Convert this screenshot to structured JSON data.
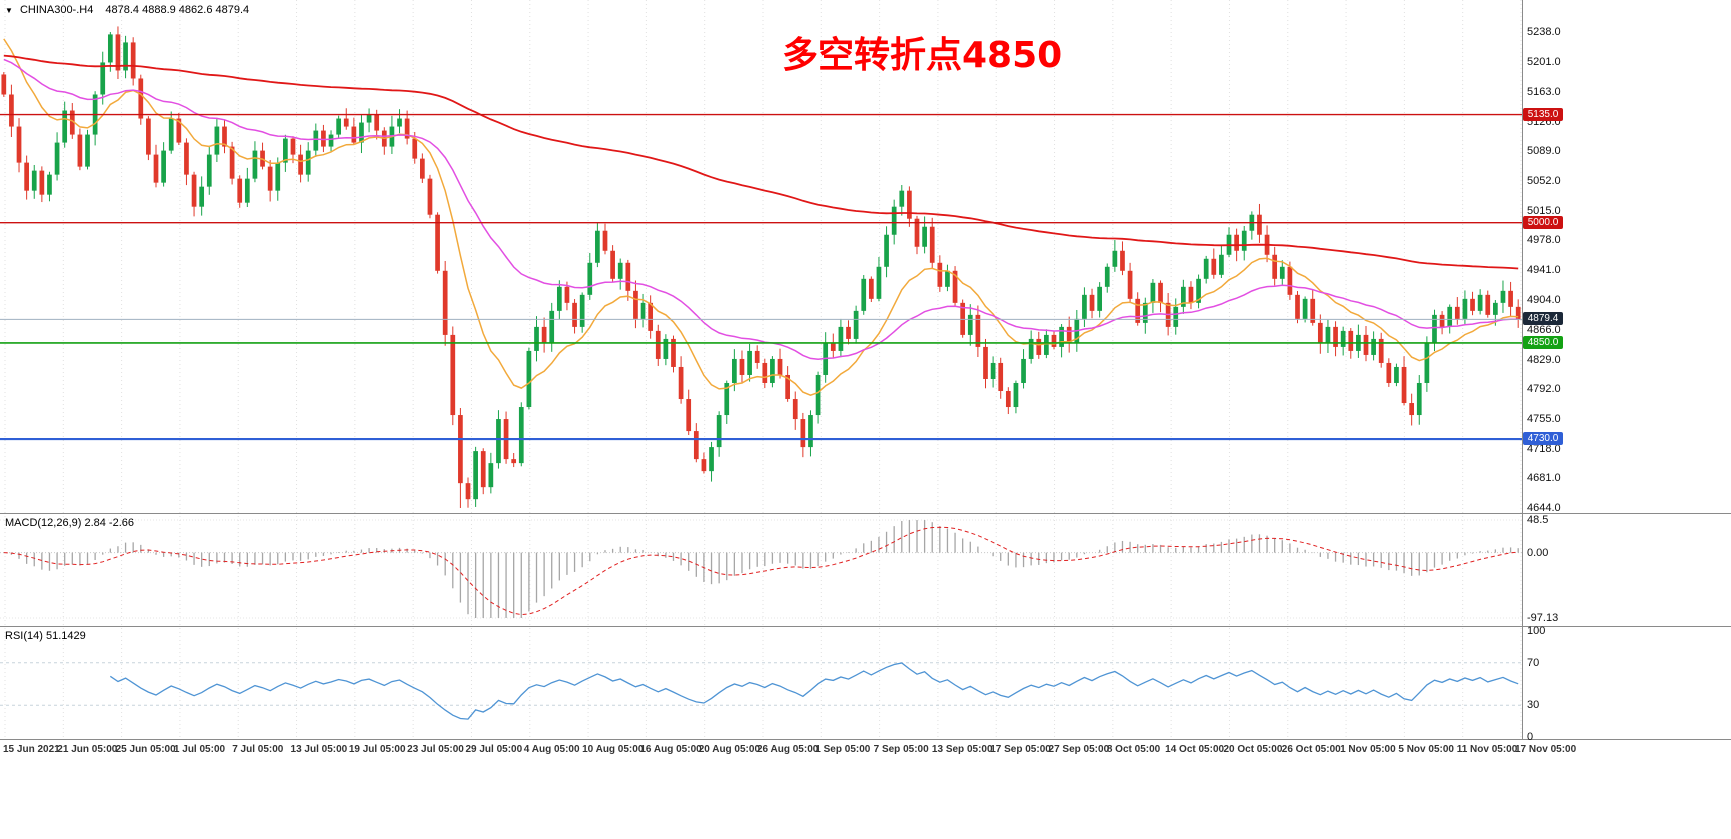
{
  "header": {
    "marker": "▼",
    "symbol": "CHINA300-.H4",
    "ohlc": "4878.4 4888.9 4862.6 4879.4"
  },
  "annotation": {
    "text": "多空转折点4850",
    "color": "#ff0000"
  },
  "price_scale": {
    "ticks": [
      "5238.0",
      "5201.0",
      "5163.0",
      "5126.0",
      "5089.0",
      "5052.0",
      "5015.0",
      "4978.0",
      "4941.0",
      "4904.0",
      "4866.0",
      "4829.0",
      "4792.0",
      "4755.0",
      "4718.0",
      "4681.0",
      "4644.0"
    ],
    "tick_values": [
      5238,
      5201,
      5163,
      5126,
      5089,
      5052,
      5015,
      4978,
      4941,
      4904,
      4866,
      4829,
      4792,
      4755,
      4718,
      4681,
      4644
    ],
    "level_lines": [
      {
        "name": "resistance-5135",
        "price": 5135.0,
        "label": "5135.0",
        "color": "#cc1111",
        "badge": "#cc1111",
        "width": 1.4
      },
      {
        "name": "resistance-5000",
        "price": 5000.0,
        "label": "5000.0",
        "color": "#cc1111",
        "badge": "#cc1111",
        "width": 1.4
      },
      {
        "name": "pivot-4850",
        "price": 4850.0,
        "label": "4850.0",
        "color": "#13a113",
        "badge": "#13a113",
        "width": 1.6
      },
      {
        "name": "support-4730",
        "price": 4730.0,
        "label": "4730.0",
        "color": "#2f5fd6",
        "badge": "#2f5fd6",
        "width": 2.2
      }
    ],
    "current_price": {
      "name": "current-price",
      "price": 4879.4,
      "label": "4879.4",
      "line_color": "#9fb0c0",
      "badge": "#1b2838"
    }
  },
  "macd": {
    "label": "MACD(12,26,9) 2.84 -2.66",
    "axis": [
      {
        "text": "48.5",
        "value": 48.5
      },
      {
        "text": "0.00",
        "value": 0
      },
      {
        "text": "-97.13",
        "value": -97.13
      }
    ],
    "histogram_color": "#a6a6a6",
    "signal_color": "#e02020"
  },
  "rsi": {
    "label": "RSI(14) 51.1429",
    "axis": [
      {
        "text": "100",
        "value": 100
      },
      {
        "text": "70",
        "value": 70
      },
      {
        "text": "30",
        "value": 30
      },
      {
        "text": "0",
        "value": 0
      }
    ],
    "line_color": "#4f94d4"
  },
  "time_axis": {
    "labels": [
      "15 Jun 2021",
      "21 Jun 05:00",
      "25 Jun 05:00",
      "1 Jul 05:00",
      "7 Jul 05:00",
      "13 Jul 05:00",
      "19 Jul 05:00",
      "23 Jul 05:00",
      "29 Jul 05:00",
      "4 Aug 05:00",
      "10 Aug 05:00",
      "16 Aug 05:00",
      "20 Aug 05:00",
      "26 Aug 05:00",
      "1 Sep 05:00",
      "7 Sep 05:00",
      "13 Sep 05:00",
      "17 Sep 05:00",
      "27 Sep 05:00",
      "8 Oct 05:00",
      "14 Oct 05:00",
      "20 Oct 05:00",
      "26 Oct 05:00",
      "1 Nov 05:00",
      "5 Nov 05:00",
      "11 Nov 05:00",
      "17 Nov 05:00"
    ]
  },
  "chart_data": {
    "type": "candlestick",
    "symbol": "CHINA300-",
    "timeframe": "H4",
    "title": "CHINA300-.H4",
    "y_range": [
      4644,
      5238
    ],
    "x_start": "15 Jun 2021",
    "x_end": "17 Nov 2021 05:00",
    "current_bar": {
      "open": 4878.4,
      "high": 4888.9,
      "low": 4862.6,
      "close": 4879.4
    },
    "horizontal_levels": [
      5135.0,
      5000.0,
      4850.0,
      4730.0
    ],
    "key_points": [
      {
        "date": "25 Jun 2021",
        "price": 5238,
        "type": "high"
      },
      {
        "date": "23 Jul 2021",
        "price": 4644,
        "type": "low"
      },
      {
        "date": "10 Aug 2021",
        "price": 5000,
        "type": "swing-high"
      },
      {
        "date": "20 Aug 2021",
        "price": 4690,
        "type": "swing-low"
      },
      {
        "date": "7 Sep 2021",
        "price": 5052,
        "type": "swing-high"
      },
      {
        "date": "20 Oct 2021",
        "price": 5015,
        "type": "swing-high"
      },
      {
        "date": "5 Nov 2021",
        "price": 4755,
        "type": "swing-low"
      },
      {
        "date": "17 Nov 2021",
        "price": 4879.4,
        "type": "last"
      }
    ],
    "first_open": 5185,
    "closes": [
      5160,
      5120,
      5075,
      5040,
      5065,
      5035,
      5060,
      5100,
      5140,
      5110,
      5070,
      5110,
      5160,
      5200,
      5235,
      5190,
      5225,
      5180,
      5130,
      5085,
      5050,
      5090,
      5130,
      5100,
      5060,
      5020,
      5045,
      5085,
      5120,
      5095,
      5055,
      5025,
      5055,
      5090,
      5070,
      5040,
      5075,
      5105,
      5085,
      5060,
      5090,
      5115,
      5095,
      5110,
      5130,
      5120,
      5100,
      5125,
      5135,
      5115,
      5095,
      5120,
      5130,
      5105,
      5080,
      5055,
      5010,
      4940,
      4860,
      4760,
      4675,
      4655,
      4715,
      4670,
      4700,
      4755,
      4705,
      4700,
      4770,
      4840,
      4870,
      4850,
      4890,
      4920,
      4900,
      4870,
      4910,
      4950,
      4990,
      4965,
      4930,
      4950,
      4915,
      4880,
      4900,
      4865,
      4830,
      4855,
      4820,
      4780,
      4740,
      4705,
      4690,
      4720,
      4760,
      4800,
      4830,
      4810,
      4840,
      4825,
      4800,
      4830,
      4810,
      4780,
      4755,
      4720,
      4760,
      4810,
      4850,
      4840,
      4870,
      4855,
      4890,
      4930,
      4905,
      4945,
      4985,
      5020,
      5040,
      5005,
      4970,
      4995,
      4950,
      4920,
      4940,
      4900,
      4860,
      4885,
      4845,
      4805,
      4825,
      4790,
      4770,
      4800,
      4830,
      4855,
      4835,
      4860,
      4845,
      4870,
      4850,
      4880,
      4910,
      4890,
      4920,
      4945,
      4965,
      4940,
      4905,
      4875,
      4900,
      4925,
      4900,
      4870,
      4895,
      4920,
      4900,
      4930,
      4955,
      4935,
      4960,
      4985,
      4965,
      4990,
      5010,
      4985,
      4960,
      4930,
      4945,
      4910,
      4880,
      4905,
      4875,
      4850,
      4870,
      4845,
      4865,
      4840,
      4860,
      4835,
      4855,
      4825,
      4800,
      4820,
      4775,
      4760,
      4800,
      4850,
      4885,
      4870,
      4895,
      4880,
      4905,
      4890,
      4910,
      4885,
      4900,
      4915,
      4895,
      4879.4
    ],
    "wick_overrides": [
      {
        "i": 14,
        "high": 5238
      },
      {
        "i": 60,
        "low": 4644
      }
    ],
    "candle_up_color": "#18a34a",
    "candle_down_color": "#e0392b",
    "moving_averages": [
      {
        "name": "fast",
        "period": 14,
        "seed": 5240,
        "color": "#f2a93b"
      },
      {
        "name": "medium",
        "period": 40,
        "seed": 5206,
        "color": "#e24fe2"
      },
      {
        "name": "slow",
        "period": 200,
        "seed": 5209,
        "color": "#e01717"
      }
    ],
    "indicators": {
      "macd": {
        "fast": 12,
        "slow": 26,
        "signal": 9,
        "current_values": [
          2.84,
          -2.66
        ],
        "axis_max": 48.5,
        "axis_min": -97.13
      },
      "rsi": {
        "period": 14,
        "current_value": 51.1429,
        "levels": [
          70,
          30
        ]
      }
    }
  }
}
